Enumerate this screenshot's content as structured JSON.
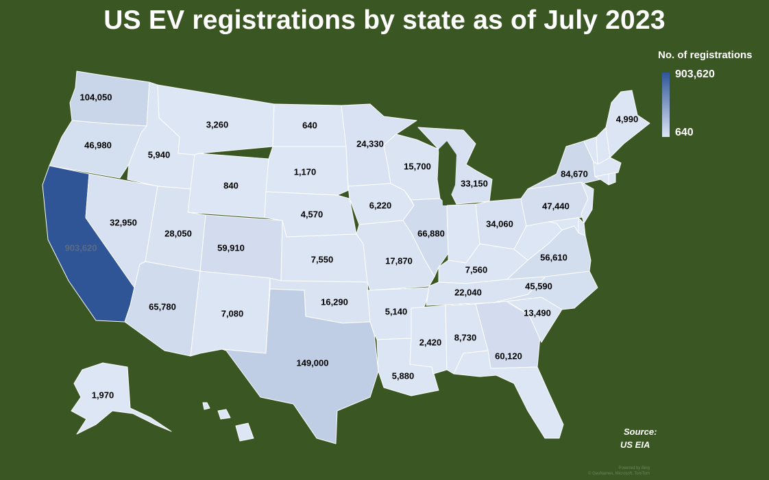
{
  "title": "US EV registrations by state as of July 2023",
  "legend": {
    "title": "No. of registrations",
    "max_label": "903,620",
    "min_label": "640",
    "max_value": 903620,
    "min_value": 640,
    "color_high": "#2f5597",
    "color_low": "#dde6f4"
  },
  "source": {
    "label": "Source:",
    "value": "US EIA"
  },
  "credit": {
    "line1": "Powered by Bing",
    "line2": "© GeoNames, Microsoft, TomTom"
  },
  "background_color": "#3a5623",
  "states": [
    {
      "id": "WA",
      "value": 104050,
      "label": "104,050"
    },
    {
      "id": "OR",
      "value": 46980,
      "label": "46,980"
    },
    {
      "id": "CA",
      "value": 903620,
      "label": "903,620"
    },
    {
      "id": "ID",
      "value": 5940,
      "label": "5,940"
    },
    {
      "id": "NV",
      "value": 32950,
      "label": "32,950"
    },
    {
      "id": "MT",
      "value": 3260,
      "label": "3,260"
    },
    {
      "id": "WY",
      "value": 840,
      "label": "840"
    },
    {
      "id": "UT",
      "value": 28050,
      "label": "28,050"
    },
    {
      "id": "AZ",
      "value": 65780,
      "label": "65,780"
    },
    {
      "id": "CO",
      "value": 59910,
      "label": "59,910"
    },
    {
      "id": "NM",
      "value": 7080,
      "label": "7,080"
    },
    {
      "id": "ND",
      "value": 640,
      "label": "640"
    },
    {
      "id": "SD",
      "value": 1170,
      "label": "1,170"
    },
    {
      "id": "NE",
      "value": 4570,
      "label": "4,570"
    },
    {
      "id": "KS",
      "value": 7550,
      "label": "7,550"
    },
    {
      "id": "OK",
      "value": 16290,
      "label": "16,290"
    },
    {
      "id": "TX",
      "value": 149000,
      "label": "149,000"
    },
    {
      "id": "MN",
      "value": 24330,
      "label": "24,330"
    },
    {
      "id": "IA",
      "value": 6220,
      "label": "6,220"
    },
    {
      "id": "MO",
      "value": 17870,
      "label": "17,870"
    },
    {
      "id": "AR",
      "value": 5140,
      "label": "5,140"
    },
    {
      "id": "LA",
      "value": 5880,
      "label": "5,880"
    },
    {
      "id": "WI",
      "value": 15700,
      "label": "15,700"
    },
    {
      "id": "IL",
      "value": 66880,
      "label": "66,880"
    },
    {
      "id": "MI",
      "value": 33150,
      "label": "33,150"
    },
    {
      "id": "IN",
      "value": null,
      "label": ""
    },
    {
      "id": "OH",
      "value": 34060,
      "label": "34,060"
    },
    {
      "id": "KY",
      "value": 7560,
      "label": "7,560"
    },
    {
      "id": "TN",
      "value": 22040,
      "label": "22,040"
    },
    {
      "id": "MS",
      "value": 2420,
      "label": "2,420"
    },
    {
      "id": "AL",
      "value": 8730,
      "label": "8,730"
    },
    {
      "id": "GA",
      "value": 60120,
      "label": "60,120"
    },
    {
      "id": "FL",
      "value": null,
      "label": ""
    },
    {
      "id": "SC",
      "value": 13490,
      "label": "13,490"
    },
    {
      "id": "NC",
      "value": 45590,
      "label": "45,590"
    },
    {
      "id": "VA",
      "value": 56610,
      "label": "56,610"
    },
    {
      "id": "WV",
      "value": null,
      "label": ""
    },
    {
      "id": "PA",
      "value": 47440,
      "label": "47,440"
    },
    {
      "id": "NY",
      "value": 84670,
      "label": "84,670"
    },
    {
      "id": "ME",
      "value": 4990,
      "label": "4,990"
    },
    {
      "id": "NH",
      "value": null,
      "label": ""
    },
    {
      "id": "VT",
      "value": null,
      "label": ""
    },
    {
      "id": "MA",
      "value": null,
      "label": ""
    },
    {
      "id": "CT",
      "value": null,
      "label": ""
    },
    {
      "id": "RI",
      "value": null,
      "label": ""
    },
    {
      "id": "NJ",
      "value": null,
      "label": ""
    },
    {
      "id": "DE",
      "value": null,
      "label": ""
    },
    {
      "id": "MD",
      "value": null,
      "label": ""
    },
    {
      "id": "AK",
      "value": 1970,
      "label": "1,970"
    },
    {
      "id": "HI",
      "value": null,
      "label": ""
    }
  ]
}
